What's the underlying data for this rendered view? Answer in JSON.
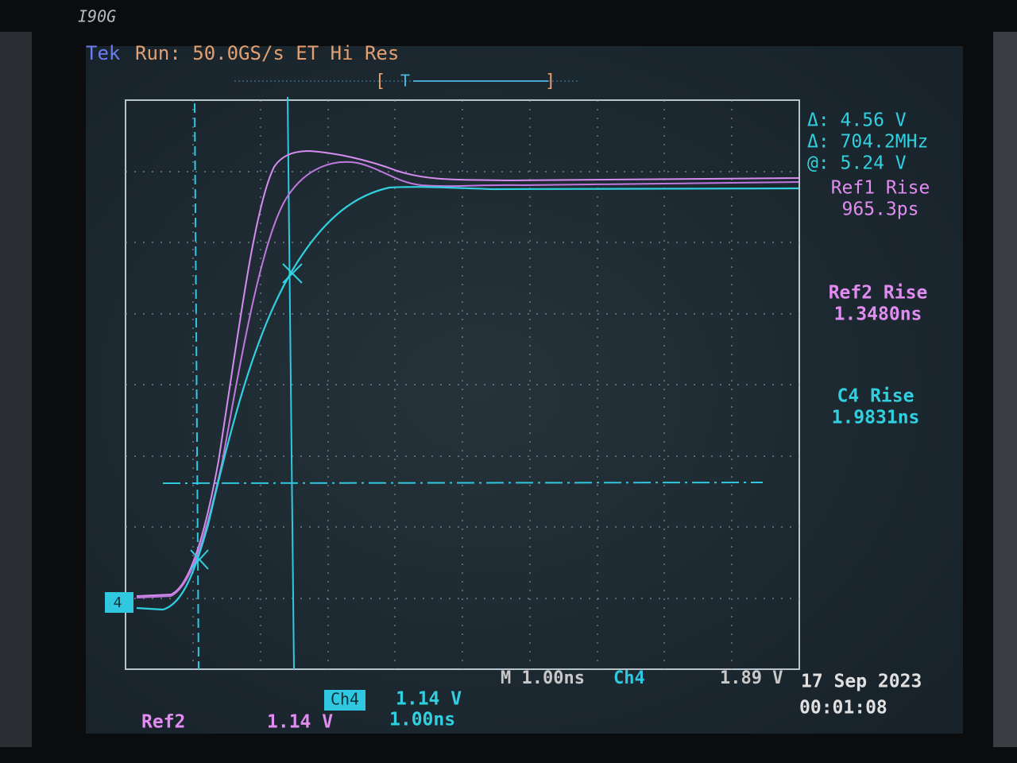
{
  "bezel": {
    "label": "I90G"
  },
  "header": {
    "brand": "Tek",
    "status": "Run: 50.0GS/s ET Hi Res",
    "trigger": "T"
  },
  "channel_marker": "4",
  "cursors": {
    "delta_v": "Δ: 4.56 V",
    "delta_f": "Δ: 704.2MHz",
    "at": "@: 5.24 V"
  },
  "measurements": [
    {
      "label": "Ref1 Rise",
      "value": "965.3ps"
    },
    {
      "label": "Ref2 Rise",
      "value": "1.3480ns"
    },
    {
      "label": "C4 Rise",
      "value": "1.9831ns"
    }
  ],
  "footer": {
    "timebase": "M 1.00ns",
    "trigger_source": "Ch4",
    "trigger_level": "1.89 V",
    "date": "17 Sep 2023",
    "time": "00:01:08",
    "ch4_box": "Ch4",
    "ch4_scale": "1.14 V",
    "ch4_time": "1.00ns",
    "ref2_label": "Ref2",
    "ref2_scale": "1.14 V"
  }
}
